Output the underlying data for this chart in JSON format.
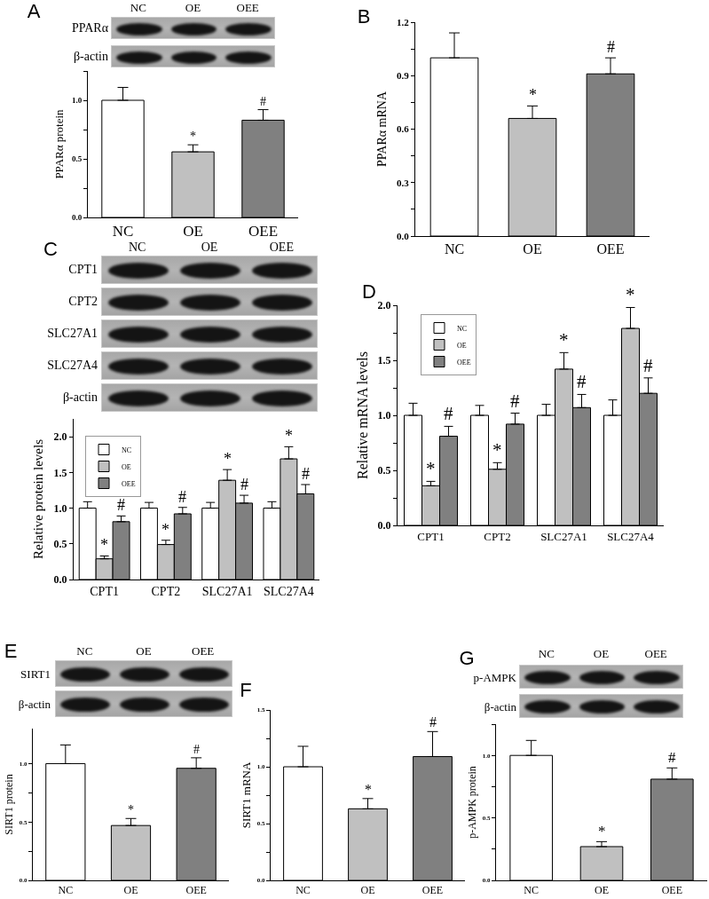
{
  "chart_data": [
    {
      "type": "bar",
      "categories": [
        "NC",
        "OE",
        "OEE"
      ],
      "values": [
        1.0,
        0.56,
        0.83
      ],
      "errors": [
        [
          1.0,
          1.11
        ],
        [
          0.56,
          0.62
        ],
        [
          0.83,
          0.92
        ]
      ],
      "colors": [
        "#ffffff",
        "#c0c0c0",
        "#808080"
      ],
      "value_labels": [
        null,
        "*",
        "#"
      ],
      "ylabel": "PPARα protein",
      "ylim": [
        0,
        1.25
      ],
      "yticks": [
        {
          "value": 0,
          "label": "0.0"
        },
        {
          "value": 0.25,
          "label": null
        },
        0.5,
        {
          "value": 0.75,
          "label": null
        },
        {
          "value": 1,
          "label": "1.0"
        },
        {
          "value": 1.25,
          "label": null
        }
      ],
      "annotations": [
        "A",
        "NC",
        "OE",
        "OEE",
        "PPARα",
        "β-actin"
      ]
    },
    {
      "type": "bar",
      "categories": [
        "NC",
        "OE",
        "OEE"
      ],
      "values": [
        1.0,
        0.66,
        0.91
      ],
      "errors": [
        [
          1.0,
          1.14
        ],
        [
          0.66,
          0.73
        ],
        [
          0.91,
          1.0
        ]
      ],
      "colors": [
        "#ffffff",
        "#c0c0c0",
        "#808080"
      ],
      "value_labels": [
        null,
        "*",
        "#"
      ],
      "ylabel": "PPARα mRNA",
      "ylim": [
        0,
        1.2
      ],
      "yticks": [
        {
          "value": 0,
          "label": "0.0"
        },
        {
          "value": 0.15,
          "label": null
        },
        0.3,
        {
          "value": 0.45,
          "label": null
        },
        0.6,
        {
          "value": 0.75,
          "label": null
        },
        0.9,
        {
          "value": 1.05,
          "label": null
        },
        1.2
      ],
      "annotations": [
        "B"
      ]
    },
    {
      "type": "bar",
      "categories": [
        "CPT1",
        "CPT2",
        "SLC27A1",
        "SLC27A4"
      ],
      "series": [
        {
          "name": "NC",
          "color": "#ffffff",
          "values": [
            1.0,
            1.0,
            1.0,
            1.0
          ],
          "errors": [
            [
              1.0,
              1.09
            ],
            [
              1.0,
              1.08
            ],
            [
              1.0,
              1.08
            ],
            [
              1.0,
              1.09
            ]
          ]
        },
        {
          "name": "OE",
          "color": "#c0c0c0",
          "values": [
            0.29,
            0.49,
            1.39,
            1.69
          ],
          "errors": [
            [
              0.29,
              0.33
            ],
            [
              0.49,
              0.55
            ],
            [
              1.39,
              1.54
            ],
            [
              1.69,
              1.86
            ]
          ],
          "value_labels": [
            "*",
            "*",
            "*",
            "*"
          ]
        },
        {
          "name": "OEE",
          "color": "#808080",
          "values": [
            0.81,
            0.92,
            1.07,
            1.2
          ],
          "errors": [
            [
              0.81,
              0.89
            ],
            [
              0.92,
              1.01
            ],
            [
              1.07,
              1.18
            ],
            [
              1.2,
              1.33
            ]
          ],
          "value_labels": [
            "#",
            "#",
            "#",
            "#"
          ]
        }
      ],
      "ylabel": "Relative protein levels",
      "ylim": [
        0,
        2.25
      ],
      "yticks": [
        {
          "value": 0,
          "label": "0.0"
        },
        0.5,
        {
          "value": 1,
          "label": "1.0"
        },
        1.5,
        {
          "value": 2,
          "label": "2.0"
        }
      ],
      "legend": "top left",
      "annotations": [
        "C",
        "NC",
        "OE",
        "OEE",
        "CPT1",
        "CPT2",
        "SLC27A1",
        "SLC27A4",
        "β-actin"
      ]
    },
    {
      "type": "bar",
      "categories": [
        "CPT1",
        "CPT2",
        "SLC27A1",
        "SLC27A4"
      ],
      "series": [
        {
          "name": "NC",
          "color": "#ffffff",
          "values": [
            1.0,
            1.0,
            1.0,
            1.0
          ],
          "errors": [
            [
              1.0,
              1.11
            ],
            [
              1.0,
              1.09
            ],
            [
              1.0,
              1.1
            ],
            [
              1.0,
              1.14
            ]
          ]
        },
        {
          "name": "OE",
          "color": "#c0c0c0",
          "values": [
            0.36,
            0.51,
            1.42,
            1.79
          ],
          "errors": [
            [
              0.36,
              0.4
            ],
            [
              0.51,
              0.57
            ],
            [
              1.42,
              1.57
            ],
            [
              1.79,
              1.98
            ]
          ],
          "value_labels": [
            "*",
            "*",
            "*",
            "*"
          ]
        },
        {
          "name": "OEE",
          "color": "#808080",
          "values": [
            0.81,
            0.92,
            1.07,
            1.2
          ],
          "errors": [
            [
              0.81,
              0.9
            ],
            [
              0.92,
              1.02
            ],
            [
              1.07,
              1.19
            ],
            [
              1.2,
              1.34
            ]
          ],
          "value_labels": [
            "#",
            "#",
            "#",
            "#"
          ]
        }
      ],
      "ylabel": "Relative mRNA levels",
      "ylim": [
        0,
        2
      ],
      "yticks": [
        {
          "value": 0,
          "label": "0.0"
        },
        {
          "value": 0.25,
          "label": null
        },
        0.5,
        {
          "value": 0.75,
          "label": null
        },
        {
          "value": 1,
          "label": "1.0"
        },
        {
          "value": 1.25,
          "label": null
        },
        1.5,
        {
          "value": 1.75,
          "label": null
        },
        {
          "value": 2,
          "label": "2.0"
        }
      ],
      "legend": "top left",
      "annotations": [
        "D"
      ]
    },
    {
      "type": "bar",
      "categories": [
        "NC",
        "OE",
        "OEE"
      ],
      "values": [
        1.0,
        0.47,
        0.96
      ],
      "errors": [
        [
          1.0,
          1.16
        ],
        [
          0.47,
          0.53
        ],
        [
          0.96,
          1.05
        ]
      ],
      "colors": [
        "#ffffff",
        "#c0c0c0",
        "#808080"
      ],
      "value_labels": [
        null,
        "*",
        "#"
      ],
      "ylabel": "SIRT1 protein",
      "ylim": [
        0,
        1.3
      ],
      "yticks": [
        {
          "value": 0,
          "label": "0.0"
        },
        {
          "value": 0.25,
          "label": null
        },
        0.5,
        {
          "value": 0.75,
          "label": null
        },
        {
          "value": 1,
          "label": "1.0"
        }
      ],
      "annotations": [
        "E",
        "NC",
        "OE",
        "OEE",
        "SIRT1",
        "β-actin"
      ]
    },
    {
      "type": "bar",
      "categories": [
        "NC",
        "OE",
        "OEE"
      ],
      "values": [
        1.0,
        0.63,
        1.09
      ],
      "errors": [
        [
          1.0,
          1.18
        ],
        [
          0.63,
          0.72
        ],
        [
          1.09,
          1.31
        ]
      ],
      "colors": [
        "#ffffff",
        "#c0c0c0",
        "#808080"
      ],
      "value_labels": [
        null,
        "*",
        "#"
      ],
      "ylabel": "SIRT1 mRNA",
      "ylim": [
        0,
        1.5
      ],
      "yticks": [
        {
          "value": 0,
          "label": "0.0"
        },
        {
          "value": 0.25,
          "label": null
        },
        0.5,
        {
          "value": 0.75,
          "label": null
        },
        {
          "value": 1,
          "label": "1.0"
        },
        {
          "value": 1.25,
          "label": null
        },
        1.5
      ],
      "annotations": [
        "F"
      ]
    },
    {
      "type": "bar",
      "categories": [
        "NC",
        "OE",
        "OEE"
      ],
      "values": [
        1.0,
        0.27,
        0.81
      ],
      "errors": [
        [
          1.0,
          1.12
        ],
        [
          0.27,
          0.31
        ],
        [
          0.81,
          0.9
        ]
      ],
      "colors": [
        "#ffffff",
        "#c0c0c0",
        "#808080"
      ],
      "value_labels": [
        null,
        "*",
        "#"
      ],
      "ylabel": "p-AMPK protein",
      "ylim": [
        0,
        1.25
      ],
      "yticks": [
        {
          "value": 0,
          "label": "0.0"
        },
        {
          "value": 0.25,
          "label": null
        },
        0.5,
        {
          "value": 0.75,
          "label": null
        },
        {
          "value": 1,
          "label": "1.0"
        },
        {
          "value": 1.25,
          "label": null
        }
      ],
      "annotations": [
        "G",
        "NC",
        "OE",
        "OEE",
        "p-AMPK",
        "β-actin"
      ]
    }
  ]
}
